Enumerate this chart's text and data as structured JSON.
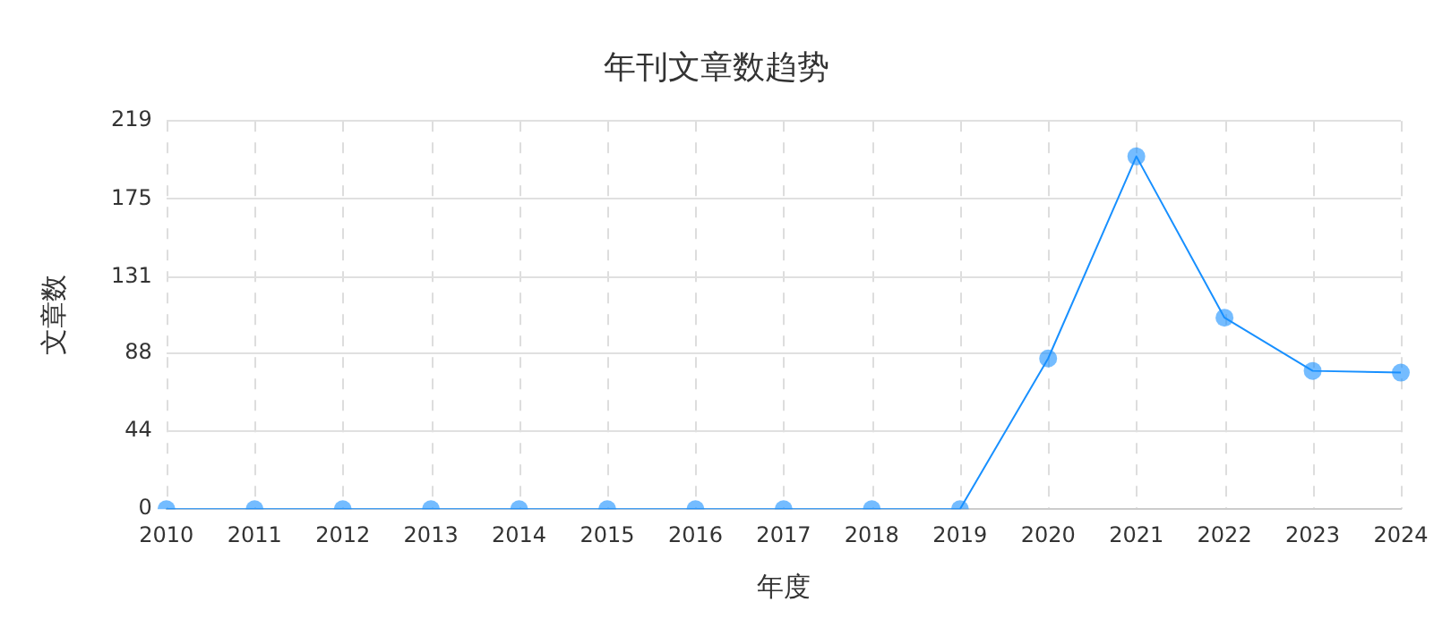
{
  "chart_data": {
    "type": "line",
    "title": "年刊文章数趋势",
    "xlabel": "年度",
    "ylabel": "文章数",
    "categories": [
      "2010",
      "2011",
      "2012",
      "2013",
      "2014",
      "2015",
      "2016",
      "2017",
      "2018",
      "2019",
      "2020",
      "2021",
      "2022",
      "2023",
      "2024"
    ],
    "series": [
      {
        "color": "#1890ff",
        "values": [
          0,
          0,
          0,
          0,
          0,
          0,
          0,
          0,
          0,
          0,
          85,
          199,
          108,
          78,
          77
        ]
      }
    ],
    "ylim": [
      0,
      219
    ],
    "yticks": [
      0,
      44,
      88,
      131,
      175,
      219
    ],
    "grid": true,
    "legend": false,
    "marker": "circle",
    "line_style": "solid"
  }
}
